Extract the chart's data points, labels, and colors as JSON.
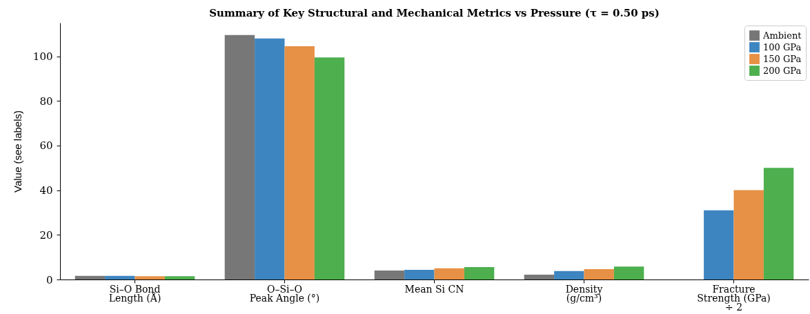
{
  "chart_data": {
    "type": "bar",
    "title": "Summary of Key Structural and Mechanical Metrics vs Pressure (τ = 0.50 ps)",
    "ylabel": "Value (see labels)",
    "categories": [
      "Si–O Bond\nLength (Å)",
      "O–Si–O\nPeak Angle (°)",
      "Mean Si CN",
      "Density\n(g/cm³)",
      "Fracture\nStrength (GPa)\n÷ 2"
    ],
    "series": [
      {
        "name": "Ambient",
        "color": "#777777",
        "values": [
          1.6,
          109.5,
          4.0,
          2.2,
          null
        ]
      },
      {
        "name": "100 GPa",
        "color": "#3d85c0",
        "values": [
          1.6,
          108,
          4.3,
          3.8,
          31
        ]
      },
      {
        "name": "150 GPa",
        "color": "#e69145",
        "values": [
          1.5,
          104.5,
          5.0,
          4.6,
          40
        ]
      },
      {
        "name": "200 GPa",
        "color": "#4daf4e",
        "values": [
          1.5,
          99.5,
          5.6,
          5.8,
          50
        ]
      }
    ],
    "ylim": [
      0,
      115
    ],
    "yticks": [
      0,
      20,
      40,
      60,
      80,
      100
    ],
    "grid": false,
    "legend": "top right"
  }
}
